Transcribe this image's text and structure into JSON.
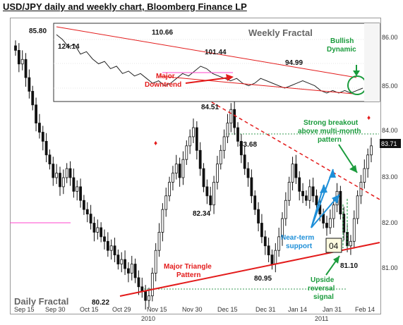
{
  "title": "USD/JPY daily and weekly chart, Bloomberg Finance LP",
  "colors": {
    "red": "#e31b1b",
    "green": "#1a9b3c",
    "blue": "#1e8fd8",
    "candle": "#111111",
    "pink": "#ff44cc"
  },
  "chart_data": [
    {
      "type": "candlestick",
      "name": "Daily Fractal",
      "x_tick_labels": [
        "Sep 15",
        "Sep 30",
        "Oct 15",
        "Oct 29",
        "Nov 15",
        "Nov 30",
        "Dec 15",
        "Dec 31",
        "Jan 14",
        "Jan 31",
        "Feb 14"
      ],
      "x_year_labels": [
        "2010",
        "2011"
      ],
      "y_tick_labels": [
        "81.00",
        "82.00",
        "83.00",
        "84.00"
      ],
      "ylim": [
        80.0,
        86.2
      ],
      "last_price_badge": "83.71",
      "level_labels": [
        "85.80",
        "80.22",
        "84.51",
        "82.34",
        "83.68",
        "80.95",
        "81.10"
      ],
      "annotations": {
        "daily_fractal": "Daily Fractal",
        "major_triangle_1": "Major Triangle",
        "major_triangle_2": "Pattern",
        "strong_breakout_1": "Strong breakout",
        "strong_breakout_2": "above multi-month",
        "strong_breakout_3": "pattern",
        "near_term_1": "Near-term",
        "near_term_2": "support",
        "upside_1": "Upside",
        "upside_2": "reversal",
        "upside_3": "signal",
        "box": "04"
      }
    },
    {
      "type": "line",
      "name": "Weekly Fractal",
      "y_tick_labels": [
        "85.00",
        "86.00"
      ],
      "level_labels": [
        "124.14",
        "110.66",
        "101.44",
        "94.99"
      ],
      "annotations": {
        "weekly_fractal": "Weekly Fractal",
        "bullish_1": "Bullish",
        "bullish_2": "Dynamic",
        "major_downtrend_1": "Major",
        "major_downtrend_2": "Downtrend"
      }
    }
  ]
}
